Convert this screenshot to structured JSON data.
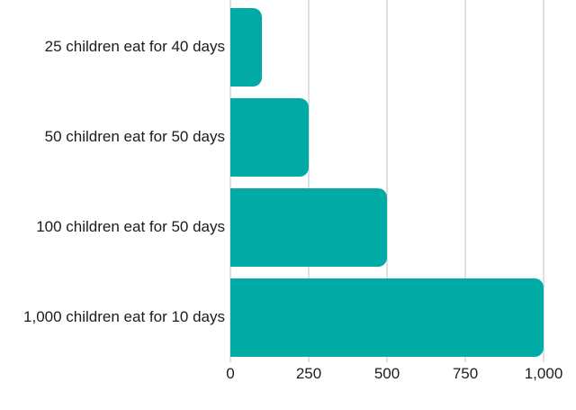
{
  "chart_data": {
    "type": "bar",
    "orientation": "horizontal",
    "title": "",
    "xlabel": "",
    "ylabel": "",
    "categories": [
      "25 children eat for 40 days",
      "50 children eat for 50 days",
      "100 children eat for 50 days",
      "1,000 children eat for 10 days"
    ],
    "values": [
      100,
      250,
      500,
      1000
    ],
    "xlim": [
      0,
      1000
    ],
    "xticks": [
      0,
      250,
      500,
      750,
      1000
    ],
    "xtick_labels": [
      "0",
      "250",
      "500",
      "750",
      "1,000"
    ],
    "grid": true,
    "legend": "none",
    "bar_color": "#00aba5",
    "gridline_color": "#e0e0e0",
    "text_color": "#1c1c1c",
    "background_color": "#ffffff"
  }
}
